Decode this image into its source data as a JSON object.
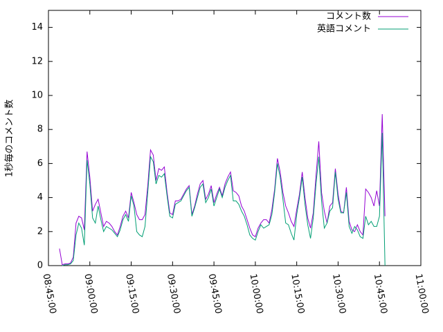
{
  "chart_data": {
    "type": "line",
    "y_label": "1秒毎のコメント数",
    "x": [
      31740,
      31800,
      31860,
      31920,
      31980,
      32040,
      32100,
      32160,
      32220,
      32280,
      32340,
      32400,
      32460,
      32520,
      32580,
      32640,
      32700,
      32760,
      32820,
      32880,
      32940,
      33000,
      33060,
      33120,
      33180,
      33240,
      33300,
      33360,
      33420,
      33480,
      33540,
      33600,
      33660,
      33720,
      33780,
      33840,
      33900,
      33960,
      34020,
      34080,
      34140,
      34200,
      34260,
      34320,
      34380,
      34440,
      34500,
      34560,
      34620,
      34680,
      34740,
      34800,
      34860,
      34920,
      34980,
      35040,
      35100,
      35160,
      35220,
      35280,
      35340,
      35400,
      35460,
      35520,
      35580,
      35640,
      35700,
      35760,
      35820,
      35880,
      35940,
      36000,
      36060,
      36120,
      36180,
      36240,
      36300,
      36360,
      36420,
      36480,
      36540,
      36600,
      36660,
      36720,
      36780,
      36840,
      36900,
      36960,
      37020,
      37080,
      37140,
      37200,
      37260,
      37320,
      37380,
      37440,
      37500,
      37560,
      37620,
      37680,
      37740,
      37800,
      37860,
      37920,
      37980,
      38040,
      38100,
      38160,
      38220,
      38280,
      38340,
      38400,
      38460,
      38520,
      38580,
      38640,
      38700,
      38760,
      38820
    ],
    "series": [
      {
        "name": "コメント数",
        "color": "#9400d3",
        "values": [
          1.0,
          0.05,
          0.1,
          0.1,
          0.15,
          0.5,
          2.5,
          2.9,
          2.8,
          2.1,
          6.7,
          5.2,
          3.2,
          3.6,
          3.9,
          3.1,
          2.3,
          2.6,
          2.5,
          2.3,
          2.0,
          1.8,
          2.3,
          2.9,
          3.2,
          2.8,
          4.3,
          3.7,
          3.0,
          2.7,
          2.7,
          3.0,
          4.7,
          6.8,
          6.5,
          5.0,
          5.7,
          5.6,
          5.8,
          4.3,
          3.1,
          3.0,
          3.8,
          3.8,
          3.9,
          4.2,
          4.5,
          4.7,
          3.0,
          3.5,
          4.2,
          4.8,
          5.0,
          3.9,
          4.2,
          4.7,
          3.7,
          4.2,
          4.6,
          4.1,
          4.8,
          5.2,
          5.5,
          4.4,
          4.3,
          4.1,
          3.5,
          3.2,
          2.7,
          2.2,
          1.8,
          1.7,
          2.2,
          2.5,
          2.7,
          2.7,
          2.5,
          3.3,
          4.5,
          6.3,
          5.5,
          4.3,
          3.5,
          3.1,
          2.6,
          2.3,
          3.3,
          4.2,
          5.5,
          4.0,
          2.8,
          2.2,
          3.1,
          5.3,
          7.3,
          4.3,
          3.2,
          2.5,
          3.5,
          3.7,
          5.7,
          4.2,
          3.2,
          3.1,
          4.6,
          2.6,
          2.1,
          2.0,
          2.4,
          2.0,
          1.8,
          4.5,
          4.3,
          4.0,
          3.5,
          4.4,
          3.5,
          8.9,
          2.9
        ]
      },
      {
        "name": "英語コメント",
        "color": "#009e73",
        "values": [
          null,
          0.0,
          0.05,
          0.05,
          0.1,
          0.3,
          1.8,
          2.5,
          2.2,
          1.2,
          6.2,
          4.8,
          2.8,
          2.5,
          3.5,
          2.7,
          2.0,
          2.3,
          2.2,
          2.1,
          1.9,
          1.7,
          2.1,
          2.7,
          3.0,
          2.6,
          4.1,
          3.5,
          2.0,
          1.8,
          1.7,
          2.3,
          4.3,
          6.4,
          6.1,
          4.8,
          5.3,
          5.2,
          5.4,
          4.1,
          2.9,
          2.8,
          3.6,
          3.7,
          3.8,
          4.1,
          4.4,
          4.6,
          2.9,
          3.4,
          4.0,
          4.6,
          4.8,
          3.7,
          4.0,
          4.5,
          3.5,
          4.0,
          4.5,
          4.0,
          4.6,
          5.0,
          5.3,
          3.8,
          3.8,
          3.6,
          3.2,
          2.9,
          2.4,
          1.8,
          1.6,
          1.5,
          2.0,
          2.4,
          2.2,
          2.3,
          2.4,
          3.0,
          4.3,
          6.0,
          5.2,
          3.9,
          2.5,
          2.4,
          1.9,
          1.5,
          3.0,
          4.0,
          5.2,
          3.6,
          2.4,
          1.6,
          2.8,
          4.8,
          6.4,
          3.8,
          2.2,
          2.5,
          3.2,
          3.4,
          5.5,
          3.9,
          3.1,
          3.1,
          4.3,
          2.3,
          1.9,
          2.3,
          2.1,
          1.7,
          1.6,
          2.9,
          2.4,
          2.6,
          2.3,
          2.3,
          2.9,
          7.8,
          0.0
        ]
      }
    ],
    "xlim": [
      31500,
      39600
    ],
    "xticks": [
      {
        "value": 31500,
        "label": "08:45:00"
      },
      {
        "value": 32400,
        "label": "09:00:00"
      },
      {
        "value": 33300,
        "label": "09:15:00"
      },
      {
        "value": 34200,
        "label": "09:30:00"
      },
      {
        "value": 35100,
        "label": "09:45:00"
      },
      {
        "value": 36000,
        "label": "10:00:00"
      },
      {
        "value": 36900,
        "label": "10:15:00"
      },
      {
        "value": 37800,
        "label": "10:30:00"
      },
      {
        "value": 38700,
        "label": "10:45:00"
      },
      {
        "value": 39600,
        "label": "11:00:00"
      }
    ],
    "ylim": [
      0,
      15
    ],
    "yticks": [
      0,
      2,
      4,
      6,
      8,
      10,
      12,
      14
    ],
    "legend": "top-right"
  }
}
